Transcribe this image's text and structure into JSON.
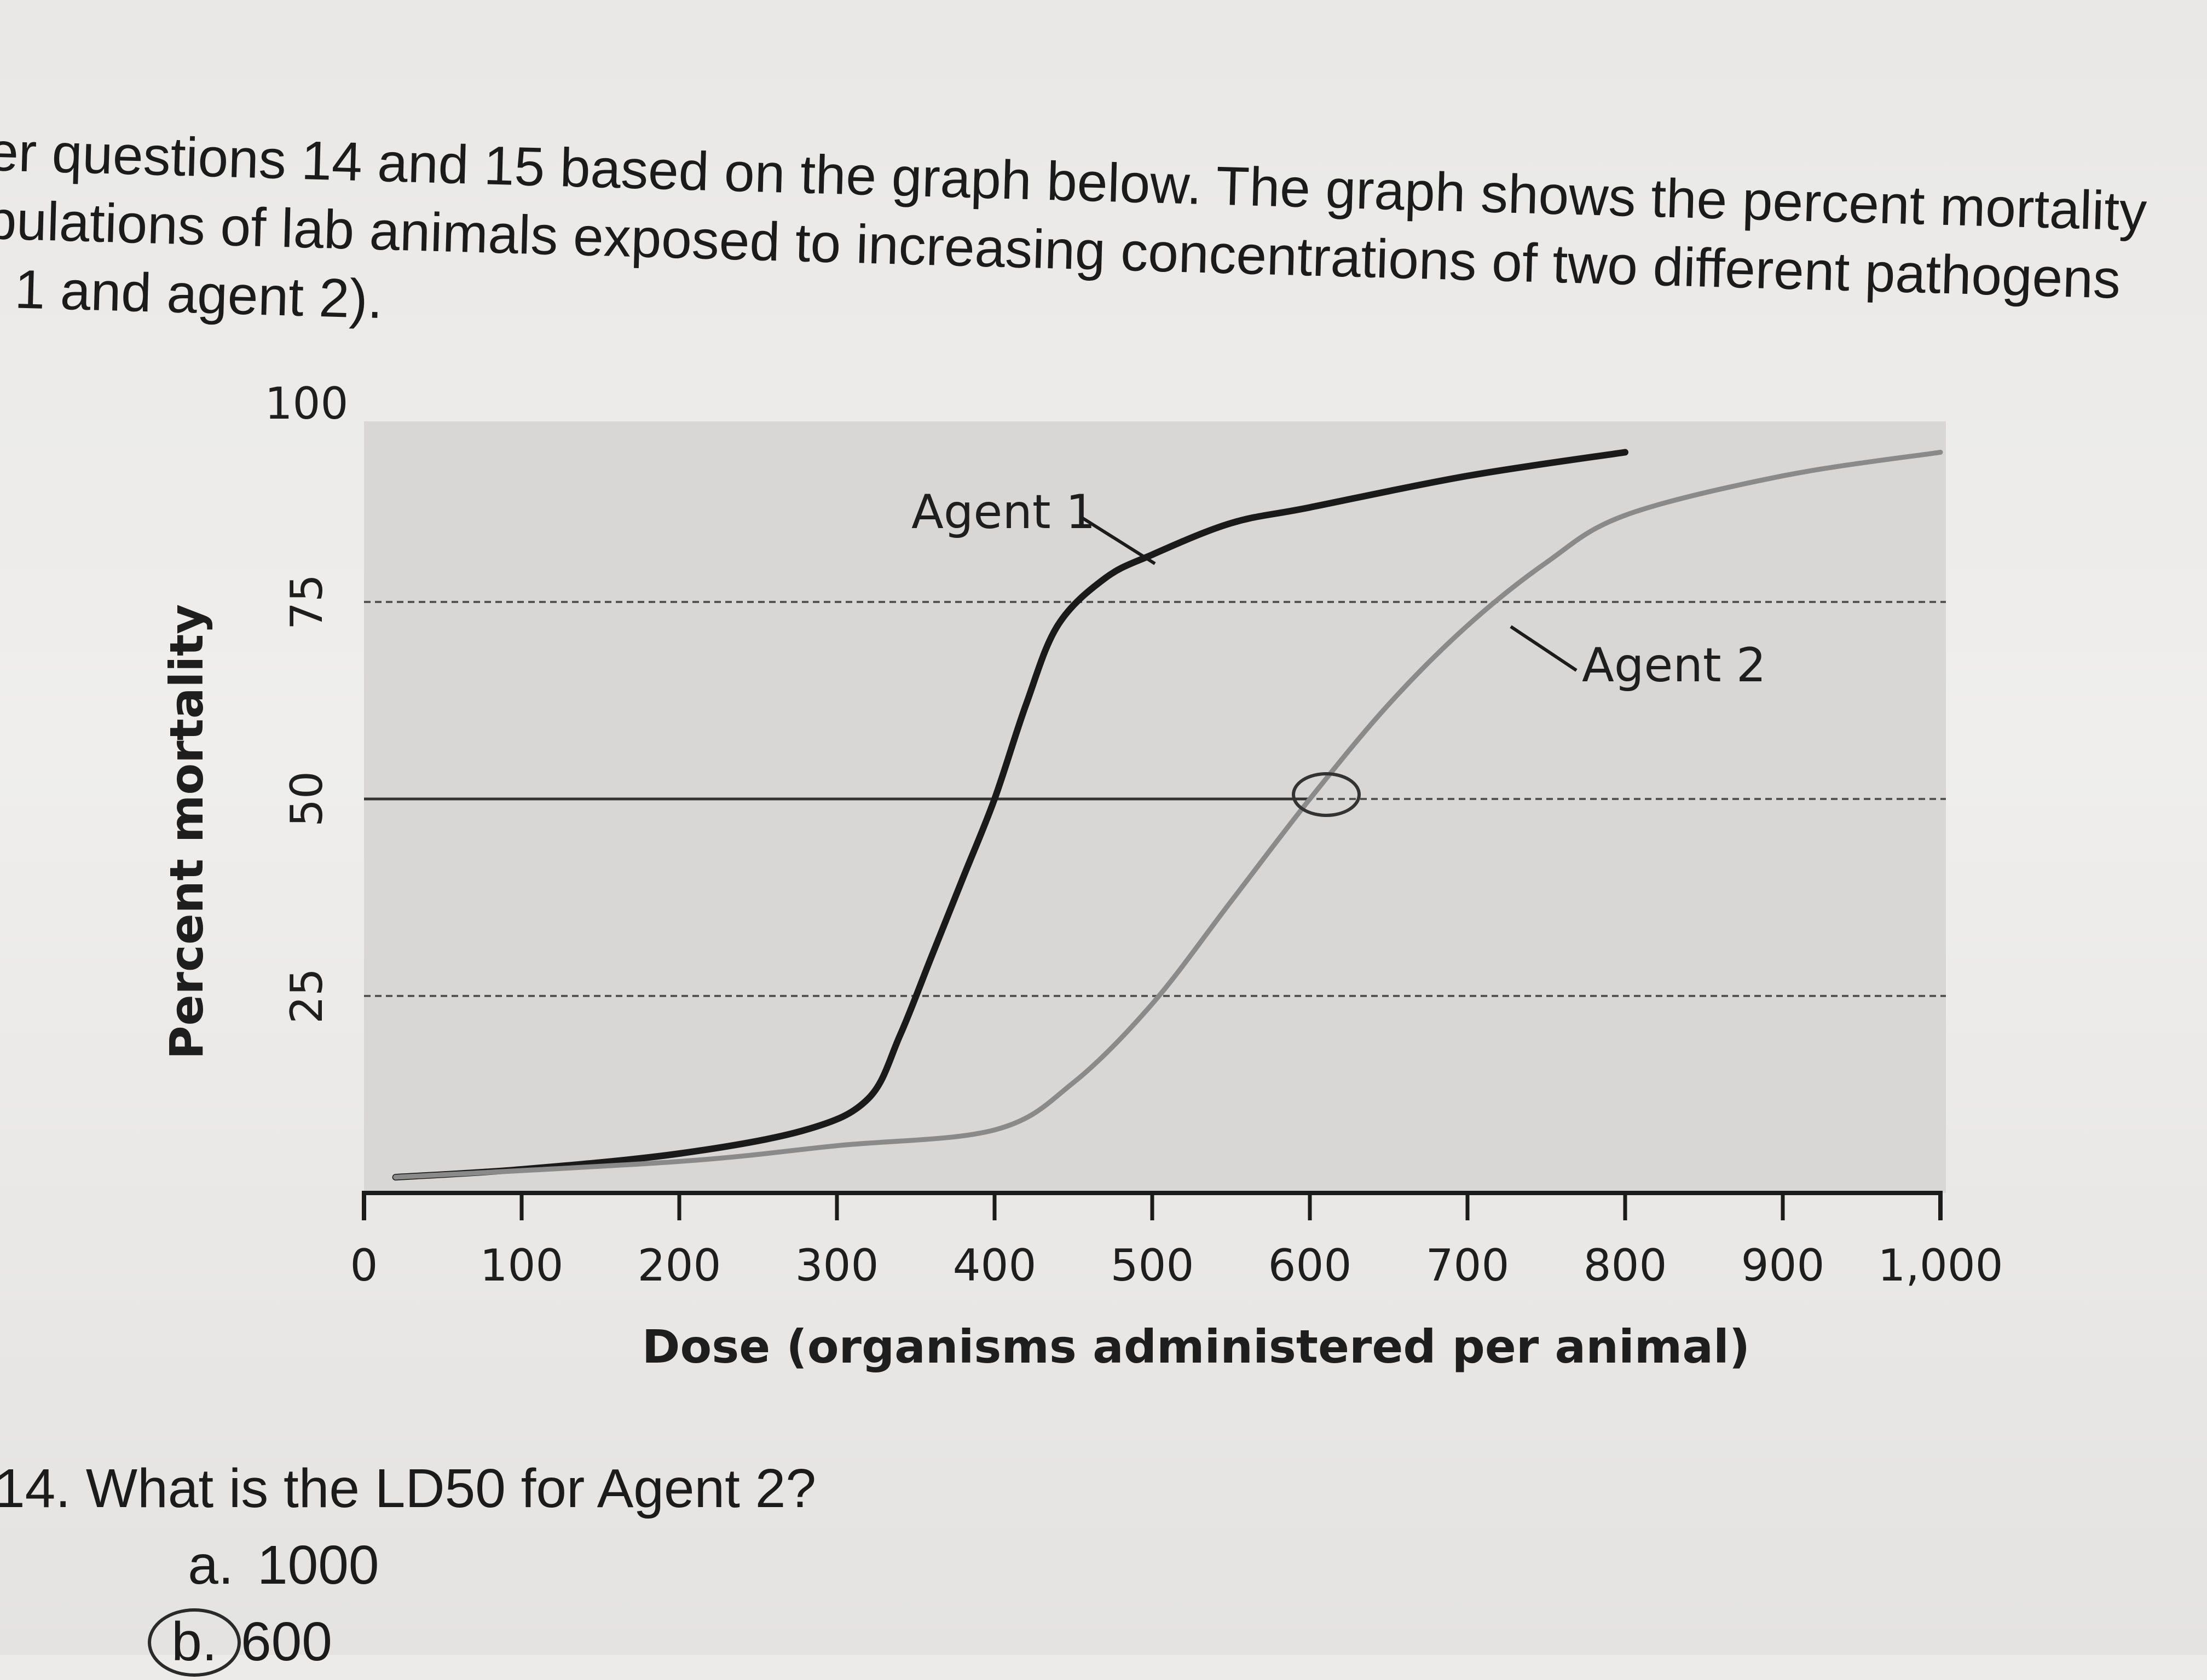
{
  "intro": {
    "line1": "er questions 14 and 15 based on the graph below. The graph shows the percent mortality",
    "line2": "pulations of lab animals exposed to increasing concentrations of two different pathogens",
    "line3": "t 1 and agent 2)."
  },
  "chart_data": {
    "type": "line",
    "xlabel": "Dose (organisms administered per animal)",
    "ylabel": "Percent mortality",
    "xlim": [
      0,
      1000
    ],
    "ylim": [
      0,
      100
    ],
    "x_ticks": [
      0,
      100,
      200,
      300,
      400,
      500,
      600,
      700,
      800,
      900,
      1000
    ],
    "x_tick_labels": [
      "0",
      "100",
      "200",
      "300",
      "400",
      "500",
      "600",
      "700",
      "800",
      "900",
      "1,000"
    ],
    "y_ticks": [
      25,
      50,
      75,
      100
    ],
    "y_tick_labels": [
      "25",
      "50",
      "75",
      "100"
    ],
    "reference_lines": [
      25,
      50,
      75
    ],
    "grid": false,
    "series": [
      {
        "name": "Agent 1",
        "color": "#1a1a1a",
        "x": [
          20,
          100,
          200,
          280,
          320,
          340,
          360,
          380,
          400,
          420,
          440,
          470,
          500,
          550,
          600,
          700,
          800
        ],
        "y": [
          2,
          3,
          5,
          8,
          12,
          20,
          30,
          40,
          50,
          62,
          72,
          78,
          81,
          85,
          87,
          91,
          94
        ]
      },
      {
        "name": "Agent 2",
        "color": "#8a8a8a",
        "x": [
          20,
          200,
          300,
          400,
          450,
          500,
          550,
          600,
          650,
          700,
          750,
          800,
          900,
          1000
        ],
        "y": [
          2,
          4,
          6,
          8,
          14,
          24,
          37,
          50,
          62,
          72,
          80,
          86,
          91,
          94
        ]
      }
    ],
    "annotations": [
      {
        "text": "Agent 1",
        "series": "Agent 1"
      },
      {
        "text": "Agent 2",
        "series": "Agent 2"
      }
    ]
  },
  "question": {
    "text": "14. What is the LD50 for Agent 2?",
    "options": [
      {
        "letter": "a.",
        "value": "1000",
        "circled": false
      },
      {
        "letter": "b.",
        "value": "600",
        "circled": true
      }
    ]
  }
}
